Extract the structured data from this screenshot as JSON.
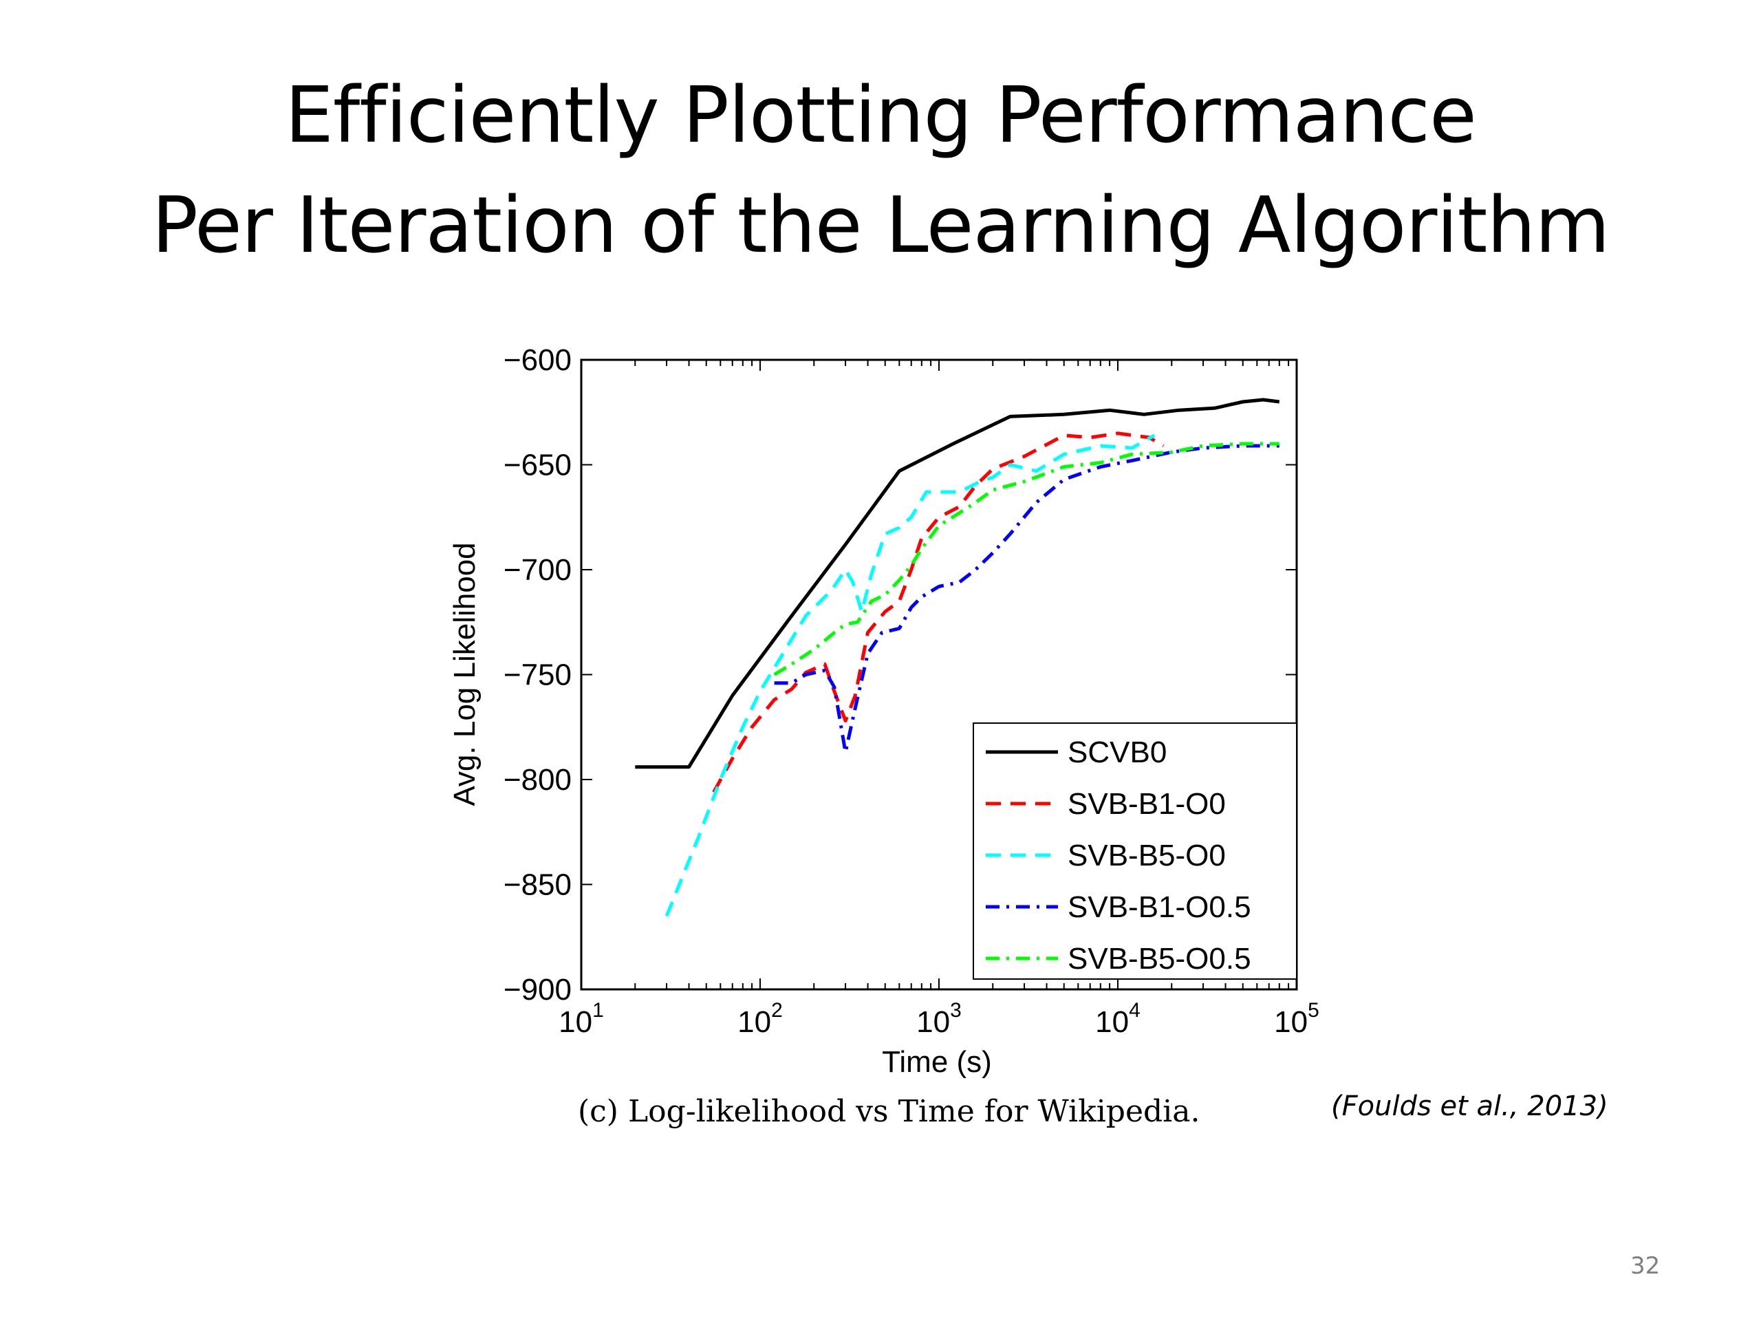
{
  "slide": {
    "title_line1": "Efficiently Plotting Performance",
    "title_line2": "Per Iteration of the Learning Algorithm",
    "caption": "(c) Log-likelihood vs Time for Wikipedia.",
    "citation": "(Foulds et al., 2013)",
    "page_number": "32"
  },
  "chart_data": {
    "type": "line",
    "xlabel": "Time (s)",
    "ylabel": "Avg. Log Likelihood",
    "xscale": "log",
    "xlim": [
      10,
      100000
    ],
    "ylim": [
      -900,
      -600
    ],
    "x_ticks": [
      10,
      100,
      1000,
      10000,
      100000
    ],
    "x_tick_labels": [
      {
        "base": "10",
        "exp": "1"
      },
      {
        "base": "10",
        "exp": "2"
      },
      {
        "base": "10",
        "exp": "3"
      },
      {
        "base": "10",
        "exp": "4"
      },
      {
        "base": "10",
        "exp": "5"
      }
    ],
    "y_ticks": [
      -600,
      -650,
      -700,
      -750,
      -800,
      -850,
      -900
    ],
    "y_tick_labels": [
      "−600",
      "−650",
      "−700",
      "−750",
      "−800",
      "−850",
      "−900"
    ],
    "grid": false,
    "legend_position": "bottom-right",
    "series": [
      {
        "name": "SCVB0",
        "color": "#000000",
        "dash": "solid",
        "points": [
          [
            20,
            -794
          ],
          [
            40,
            -794
          ],
          [
            70,
            -760
          ],
          [
            150,
            -722
          ],
          [
            300,
            -688
          ],
          [
            600,
            -653
          ],
          [
            1200,
            -640
          ],
          [
            2500,
            -627
          ],
          [
            5000,
            -626
          ],
          [
            9000,
            -624
          ],
          [
            14000,
            -626
          ],
          [
            22000,
            -624
          ],
          [
            35000,
            -623
          ],
          [
            50000,
            -620
          ],
          [
            65000,
            -619
          ],
          [
            80000,
            -620
          ]
        ]
      },
      {
        "name": "SVB-B1-O0",
        "color": "#ff0000",
        "dash": "dashed",
        "points": [
          [
            55,
            -806
          ],
          [
            70,
            -790
          ],
          [
            90,
            -775
          ],
          [
            120,
            -762
          ],
          [
            150,
            -757
          ],
          [
            180,
            -749
          ],
          [
            230,
            -745
          ],
          [
            260,
            -758
          ],
          [
            300,
            -772
          ],
          [
            340,
            -760
          ],
          [
            400,
            -730
          ],
          [
            500,
            -720
          ],
          [
            600,
            -715
          ],
          [
            700,
            -700
          ],
          [
            800,
            -685
          ],
          [
            1000,
            -675
          ],
          [
            1300,
            -670
          ],
          [
            1600,
            -660
          ],
          [
            2000,
            -652
          ],
          [
            3000,
            -646
          ],
          [
            5000,
            -636
          ],
          [
            7000,
            -637
          ],
          [
            10000,
            -635
          ],
          [
            15000,
            -637
          ],
          [
            18000,
            -641
          ]
        ]
      },
      {
        "name": "SVB-B5-O0",
        "color": "#00ffff",
        "dash": "dashed",
        "points": [
          [
            30,
            -865
          ],
          [
            45,
            -828
          ],
          [
            60,
            -800
          ],
          [
            80,
            -775
          ],
          [
            100,
            -758
          ],
          [
            130,
            -742
          ],
          [
            180,
            -722
          ],
          [
            250,
            -710
          ],
          [
            300,
            -700
          ],
          [
            330,
            -706
          ],
          [
            370,
            -720
          ],
          [
            420,
            -702
          ],
          [
            500,
            -683
          ],
          [
            600,
            -680
          ],
          [
            700,
            -675
          ],
          [
            850,
            -663
          ],
          [
            1000,
            -663
          ],
          [
            1300,
            -663
          ],
          [
            1700,
            -658
          ],
          [
            2000,
            -656
          ],
          [
            2500,
            -650
          ],
          [
            3500,
            -653
          ],
          [
            5000,
            -645
          ],
          [
            8000,
            -641
          ],
          [
            12000,
            -642
          ],
          [
            16000,
            -636
          ]
        ]
      },
      {
        "name": "SVB-B1-O0.5",
        "color": "#0000ff",
        "dash": "dashdot",
        "points": [
          [
            120,
            -754
          ],
          [
            150,
            -754
          ],
          [
            180,
            -750
          ],
          [
            230,
            -748
          ],
          [
            260,
            -756
          ],
          [
            300,
            -787
          ],
          [
            340,
            -766
          ],
          [
            400,
            -740
          ],
          [
            480,
            -730
          ],
          [
            600,
            -728
          ],
          [
            700,
            -718
          ],
          [
            800,
            -713
          ],
          [
            1000,
            -708
          ],
          [
            1300,
            -706
          ],
          [
            1600,
            -700
          ],
          [
            2000,
            -692
          ],
          [
            2500,
            -683
          ],
          [
            3500,
            -668
          ],
          [
            5000,
            -657
          ],
          [
            8000,
            -651
          ],
          [
            12000,
            -648
          ],
          [
            20000,
            -644
          ],
          [
            30000,
            -642
          ],
          [
            50000,
            -641
          ],
          [
            80000,
            -641
          ]
        ]
      },
      {
        "name": "SVB-B5-O0.5",
        "color": "#00ff00",
        "dash": "dashdot",
        "points": [
          [
            120,
            -750
          ],
          [
            150,
            -745
          ],
          [
            200,
            -738
          ],
          [
            260,
            -730
          ],
          [
            300,
            -726
          ],
          [
            350,
            -725
          ],
          [
            420,
            -715
          ],
          [
            500,
            -712
          ],
          [
            600,
            -705
          ],
          [
            700,
            -698
          ],
          [
            800,
            -690
          ],
          [
            1000,
            -679
          ],
          [
            1300,
            -673
          ],
          [
            1600,
            -668
          ],
          [
            2000,
            -662
          ],
          [
            3000,
            -658
          ],
          [
            5000,
            -651
          ],
          [
            8000,
            -649
          ],
          [
            12000,
            -645
          ],
          [
            20000,
            -644
          ],
          [
            30000,
            -641
          ],
          [
            50000,
            -640
          ],
          [
            80000,
            -640
          ]
        ]
      }
    ]
  }
}
